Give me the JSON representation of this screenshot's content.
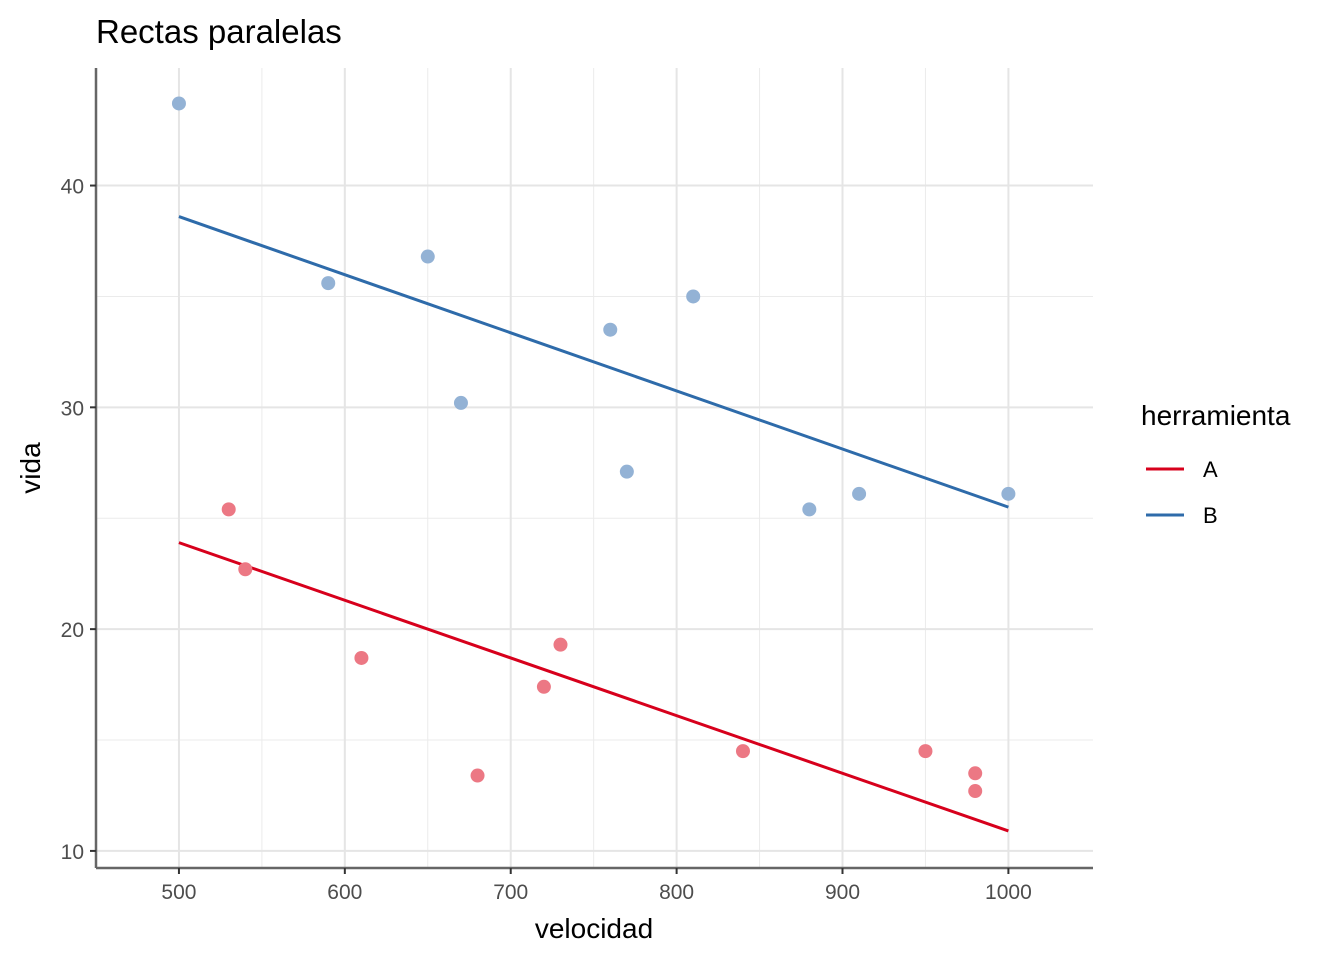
{
  "chart_data": {
    "type": "scatter",
    "title": "Rectas paralelas",
    "xlabel": "velocidad",
    "ylabel": "vida",
    "xlim": [
      450,
      1051
    ],
    "ylim": [
      9.23,
      45.3
    ],
    "x_ticks": [
      500,
      600,
      700,
      800,
      900,
      1000
    ],
    "y_ticks": [
      10,
      20,
      30,
      40
    ],
    "grid": true,
    "legend": {
      "title": "herramienta",
      "position": "right",
      "entries": [
        {
          "label": "A",
          "color": "#D7001C"
        },
        {
          "label": "B",
          "color": "#2E6BAA"
        }
      ]
    },
    "series": [
      {
        "name": "A",
        "point_color": "#EC7884",
        "line_color": "#D7001C",
        "points": [
          [
            530,
            25.4
          ],
          [
            540,
            22.7
          ],
          [
            610,
            18.7
          ],
          [
            680,
            13.4
          ],
          [
            720,
            17.4
          ],
          [
            730,
            19.3
          ],
          [
            840,
            14.5
          ],
          [
            950,
            14.5
          ],
          [
            980,
            13.5
          ],
          [
            980,
            12.7
          ]
        ],
        "fit_line": [
          [
            500,
            23.9
          ],
          [
            1000,
            10.9
          ]
        ]
      },
      {
        "name": "B",
        "point_color": "#93B2D5",
        "line_color": "#2E6BAA",
        "points": [
          [
            500,
            43.7
          ],
          [
            590,
            35.6
          ],
          [
            650,
            36.8
          ],
          [
            670,
            30.2
          ],
          [
            760,
            33.5
          ],
          [
            770,
            27.1
          ],
          [
            810,
            35.0
          ],
          [
            880,
            25.4
          ],
          [
            910,
            26.1
          ],
          [
            1000,
            26.1
          ]
        ],
        "fit_line": [
          [
            500,
            38.6
          ],
          [
            1000,
            25.5
          ]
        ]
      }
    ]
  }
}
